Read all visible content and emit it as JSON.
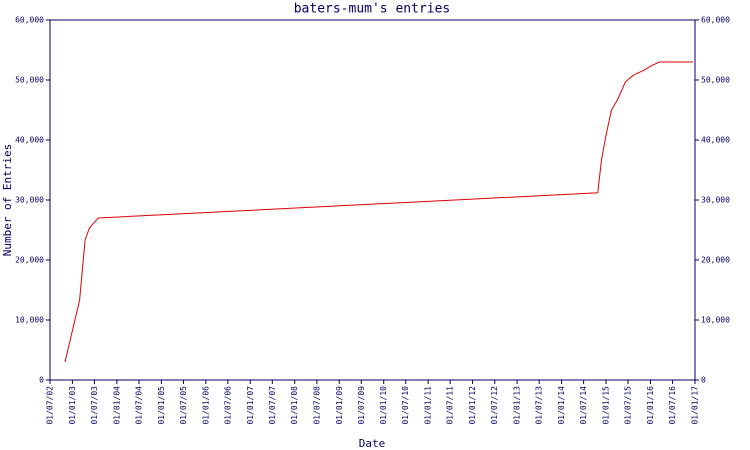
{
  "chart_data": {
    "type": "line",
    "title": "baters-mum's entries",
    "x_label": "Date",
    "y_label": "Number of Entries",
    "x": [
      "2002-11-01",
      "2003-03-01",
      "2003-04-15",
      "2003-05-20",
      "2003-07-01",
      "2003-08-01",
      "2014-10-25",
      "2014-11-25",
      "2015-01-01",
      "2015-02-15",
      "2015-04-05",
      "2015-06-10",
      "2015-08-15",
      "2015-11-15",
      "2016-01-01",
      "2016-03-15",
      "2016-12-15"
    ],
    "series": [
      {
        "name": "entries",
        "color": "#dd0000",
        "values": [
          3000,
          13300,
          23300,
          25300,
          26300,
          27000,
          31200,
          36700,
          40800,
          45000,
          46700,
          49700,
          50800,
          51700,
          52300,
          53000,
          53000
        ]
      }
    ],
    "xlim": [
      "2002-07-01",
      "2017-01-01"
    ],
    "xticks": [
      {
        "value": "2002-07-01",
        "label": "01/07/02"
      },
      {
        "value": "2003-01-01",
        "label": "01/01/03"
      },
      {
        "value": "2003-07-01",
        "label": "01/07/03"
      },
      {
        "value": "2004-01-01",
        "label": "01/01/04"
      },
      {
        "value": "2004-07-01",
        "label": "01/07/04"
      },
      {
        "value": "2005-01-01",
        "label": "01/01/05"
      },
      {
        "value": "2005-07-01",
        "label": "01/07/05"
      },
      {
        "value": "2006-01-01",
        "label": "01/01/06"
      },
      {
        "value": "2006-07-01",
        "label": "01/07/06"
      },
      {
        "value": "2007-01-01",
        "label": "01/01/07"
      },
      {
        "value": "2007-07-01",
        "label": "01/07/07"
      },
      {
        "value": "2008-01-01",
        "label": "01/01/08"
      },
      {
        "value": "2008-07-01",
        "label": "01/07/08"
      },
      {
        "value": "2009-01-01",
        "label": "01/01/09"
      },
      {
        "value": "2009-07-01",
        "label": "01/07/09"
      },
      {
        "value": "2010-01-01",
        "label": "01/01/10"
      },
      {
        "value": "2010-07-01",
        "label": "01/07/10"
      },
      {
        "value": "2011-01-01",
        "label": "01/01/11"
      },
      {
        "value": "2011-07-01",
        "label": "01/07/11"
      },
      {
        "value": "2012-01-01",
        "label": "01/01/12"
      },
      {
        "value": "2012-07-01",
        "label": "01/07/12"
      },
      {
        "value": "2013-01-01",
        "label": "01/01/13"
      },
      {
        "value": "2013-07-01",
        "label": "01/07/13"
      },
      {
        "value": "2014-01-01",
        "label": "01/01/14"
      },
      {
        "value": "2014-07-01",
        "label": "01/07/14"
      },
      {
        "value": "2015-01-01",
        "label": "01/01/15"
      },
      {
        "value": "2015-07-01",
        "label": "01/07/15"
      },
      {
        "value": "2016-01-01",
        "label": "01/01/16"
      },
      {
        "value": "2016-07-01",
        "label": "01/07/16"
      },
      {
        "value": "2017-01-01",
        "label": "01/01/17"
      }
    ],
    "ylim": [
      0,
      60000
    ],
    "yticks": [
      0,
      {
        "value": 10000,
        "label": "10,000"
      },
      {
        "value": 20000,
        "label": "20,000"
      },
      {
        "value": 30000,
        "label": "30,000"
      },
      {
        "value": 40000,
        "label": "40,000"
      },
      {
        "value": 50000,
        "label": "50,000"
      },
      {
        "value": 60000,
        "label": "60,000"
      }
    ],
    "y2lim": [
      0,
      60000
    ],
    "y2ticks": [
      0,
      {
        "value": 10000,
        "label": "10,000"
      },
      {
        "value": 20000,
        "label": "20,000"
      },
      {
        "value": 30000,
        "label": "30,000"
      },
      {
        "value": 40000,
        "label": "40,000"
      },
      {
        "value": 50000,
        "label": "50,000"
      },
      {
        "value": 60000,
        "label": "60,000"
      }
    ],
    "grid": false
  }
}
